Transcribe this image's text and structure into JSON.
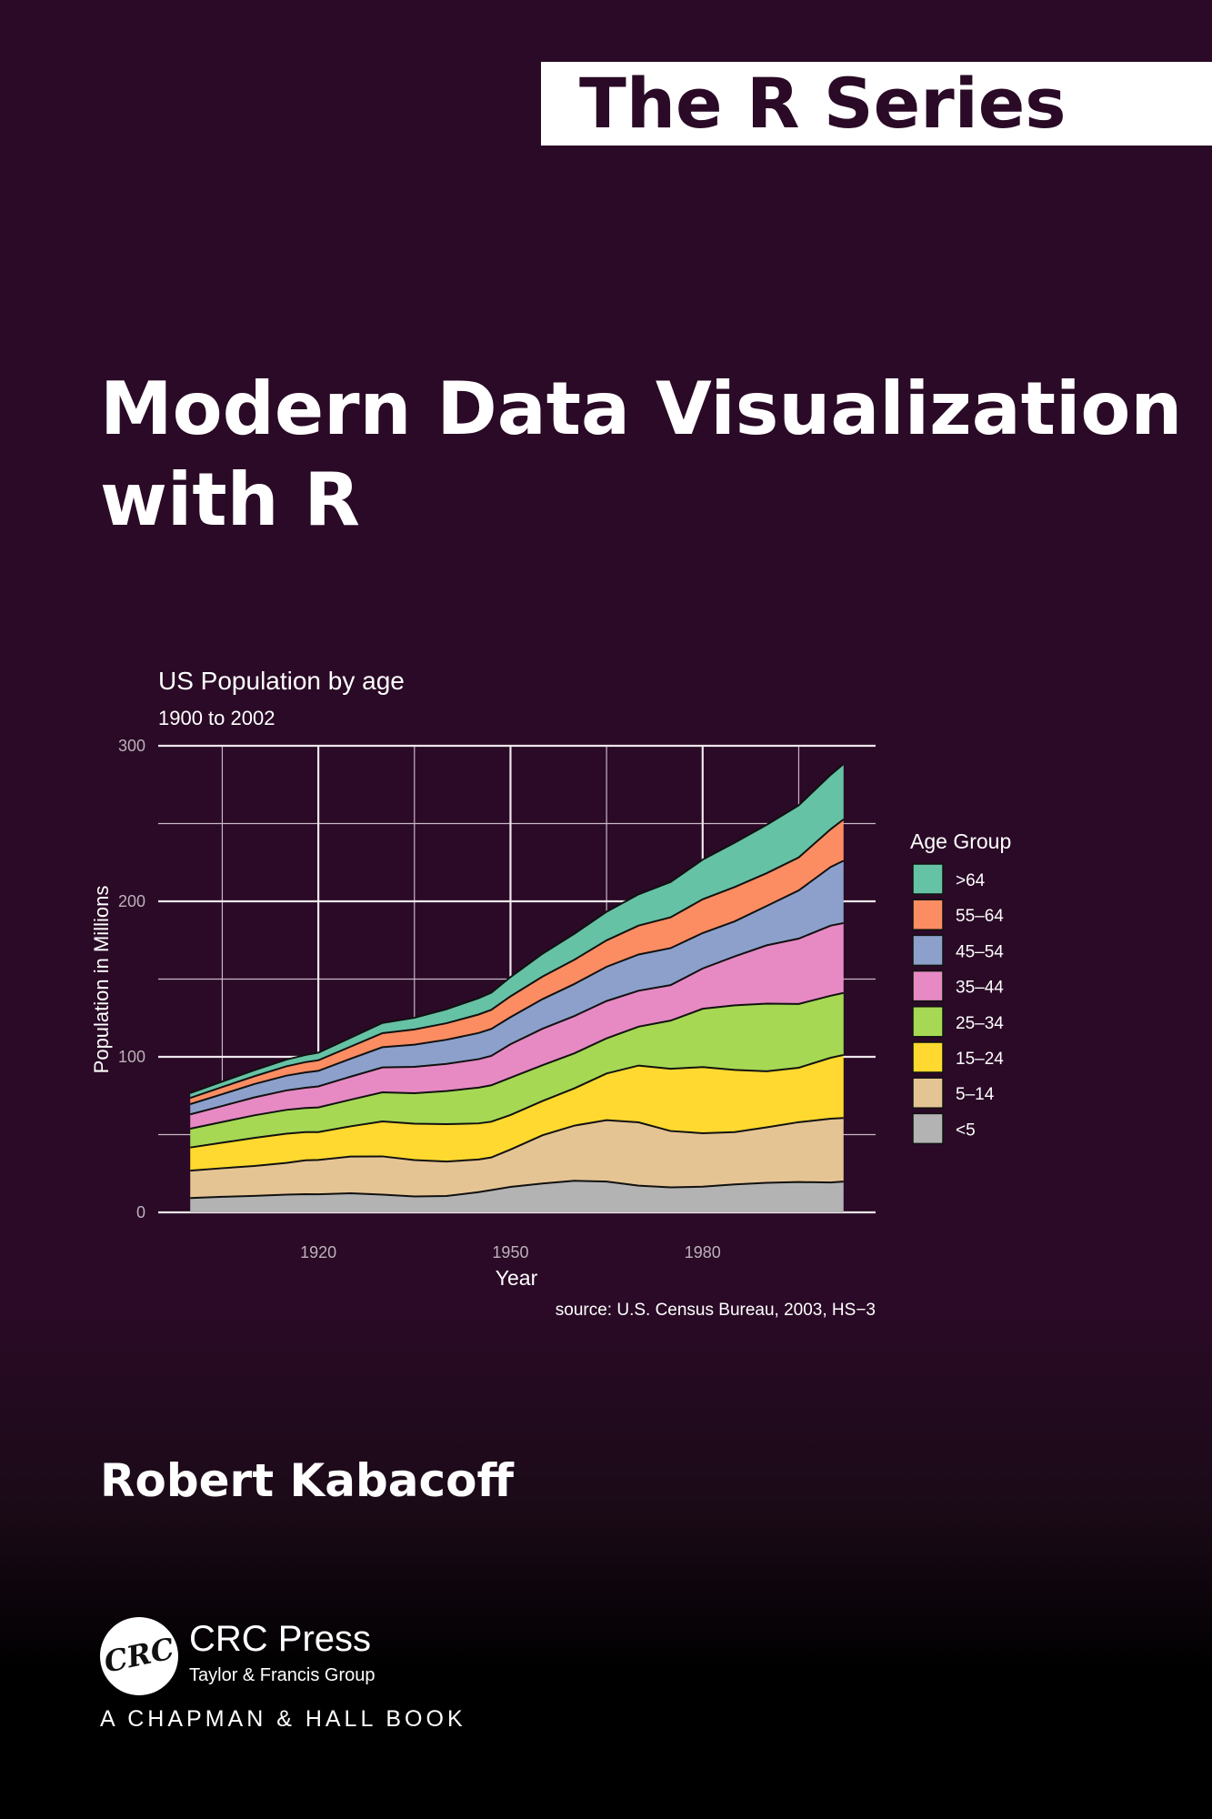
{
  "cover": {
    "series": "The R Series",
    "title_line1": "Modern Data Visualization",
    "title_line2": "with R",
    "author": "Robert Kabacoff",
    "publisher": "CRC Press",
    "publisher_sub": "Taylor & Francis Group",
    "publisher_logo": "CRC",
    "imprint": "A CHAPMAN & HALL BOOK",
    "colors": {
      "background": "#2a0a26",
      "band": "#ffffff",
      "text": "#ffffff"
    }
  },
  "chart_data": {
    "type": "area",
    "stacked": true,
    "title": "US Population by age",
    "subtitle": "1900 to 2002",
    "xlabel": "Year",
    "ylabel": "Population in Millions",
    "caption": "source: U.S. Census Bureau, 2003, HS−3",
    "xlim": [
      1895,
      2007
    ],
    "ylim": [
      0,
      300
    ],
    "xticks": [
      1920,
      1950,
      1980
    ],
    "xticklabels": [
      "1920",
      "1950",
      "1980"
    ],
    "yticks": [
      0,
      100,
      200,
      300
    ],
    "yticklabels": [
      "0",
      "100",
      "200",
      "300"
    ],
    "grid": true,
    "legend_title": "Age Group",
    "legend_position": "right",
    "x": [
      1900,
      1905,
      1910,
      1915,
      1918,
      1920,
      1925,
      1930,
      1935,
      1940,
      1945,
      1947,
      1950,
      1955,
      1960,
      1965,
      1970,
      1975,
      1980,
      1985,
      1990,
      1995,
      2000,
      2002
    ],
    "series": [
      {
        "name": "<5",
        "color": "#b3b3b3",
        "values": [
          9.2,
          10.0,
          10.6,
          11.4,
          11.7,
          11.6,
          12.3,
          11.4,
          10.2,
          10.5,
          13.0,
          14.3,
          16.4,
          18.6,
          20.3,
          19.8,
          17.2,
          16.1,
          16.5,
          18.0,
          19.0,
          19.5,
          19.2,
          19.8
        ]
      },
      {
        "name": "5–14",
        "color": "#e5c494",
        "values": [
          17.6,
          18.4,
          19.2,
          20.4,
          21.8,
          22.1,
          23.6,
          24.6,
          23.4,
          22.2,
          21.0,
          21.0,
          24.0,
          31.0,
          35.5,
          39.5,
          40.7,
          36.2,
          34.4,
          33.6,
          35.7,
          38.5,
          41.0,
          40.9
        ]
      },
      {
        "name": "15–24",
        "color": "#ffd92f",
        "values": [
          14.9,
          16.4,
          18.1,
          18.8,
          18.1,
          17.9,
          19.4,
          22.5,
          23.4,
          24.0,
          23.2,
          23.0,
          22.2,
          22.0,
          24.0,
          30.0,
          36.5,
          40.0,
          42.5,
          40.0,
          36.0,
          35.0,
          39.2,
          40.5
        ]
      },
      {
        "name": "25–34",
        "color": "#a6d854",
        "values": [
          12.1,
          13.3,
          14.5,
          15.3,
          15.5,
          15.9,
          17.1,
          18.7,
          19.6,
          21.3,
          23.0,
          23.4,
          24.0,
          23.0,
          22.5,
          22.6,
          25.0,
          31.0,
          37.5,
          41.5,
          43.5,
          41.0,
          39.9,
          39.9
        ]
      },
      {
        "name": "35–44",
        "color": "#e78ac3",
        "values": [
          9.2,
          10.3,
          11.5,
          12.5,
          13.0,
          13.5,
          14.8,
          16.0,
          17.0,
          17.5,
          18.3,
          18.9,
          21.5,
          23.5,
          24.0,
          24.0,
          23.1,
          22.8,
          25.9,
          31.5,
          37.5,
          42.0,
          45.1,
          44.9
        ]
      },
      {
        "name": "45–54",
        "color": "#8da0cb",
        "values": [
          6.6,
          7.6,
          8.6,
          9.5,
          9.9,
          10.0,
          11.5,
          13.0,
          14.2,
          15.5,
          16.8,
          17.3,
          17.4,
          19.0,
          20.6,
          22.0,
          23.3,
          23.8,
          22.8,
          22.5,
          25.3,
          31.0,
          37.7,
          40.1
        ]
      },
      {
        "name": "55–64",
        "color": "#fc8d62",
        "values": [
          4.0,
          4.6,
          5.0,
          6.0,
          6.6,
          6.8,
          7.8,
          9.0,
          9.8,
          10.6,
          11.9,
          12.3,
          13.4,
          14.5,
          15.6,
          17.0,
          18.6,
          19.8,
          21.7,
          22.1,
          21.1,
          21.2,
          24.3,
          26.6
        ]
      },
      {
        "name": ">64",
        "color": "#66c2a5",
        "values": [
          3.1,
          3.5,
          3.9,
          4.3,
          4.6,
          4.9,
          5.7,
          6.6,
          7.5,
          9.0,
          10.5,
          11.0,
          12.4,
          14.7,
          16.7,
          18.4,
          20.1,
          22.7,
          25.5,
          28.5,
          31.1,
          33.5,
          35.0,
          35.6
        ]
      }
    ]
  }
}
